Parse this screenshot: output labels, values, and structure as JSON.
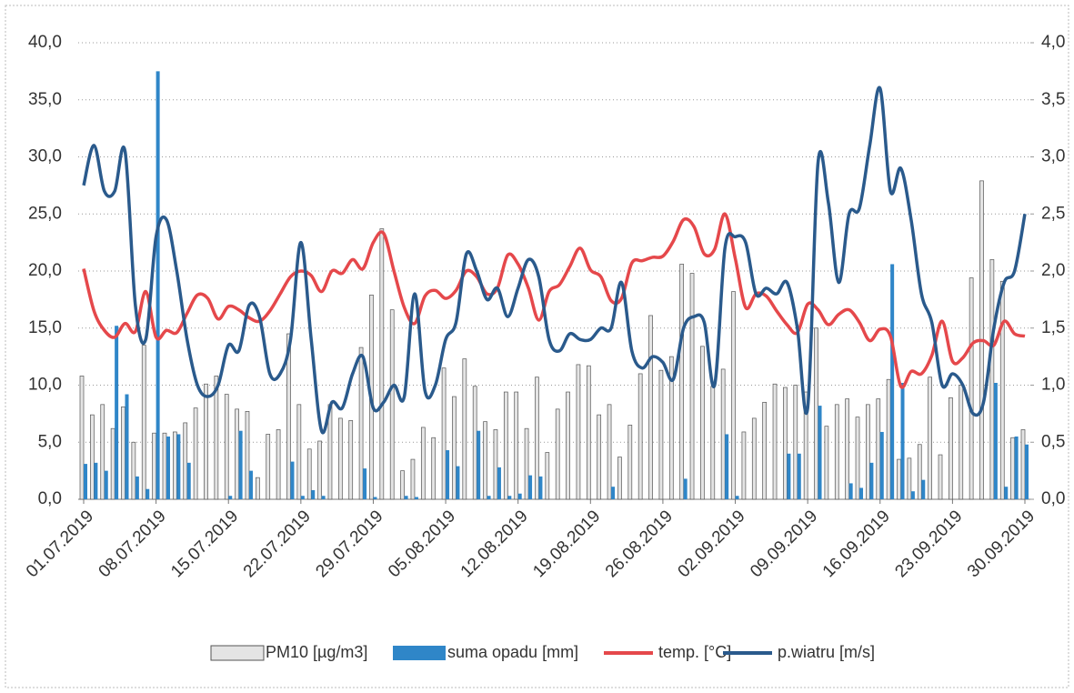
{
  "chart_data": {
    "type": "bar",
    "categories": [
      "01.07.2019",
      null,
      null,
      null,
      null,
      null,
      null,
      "08.07.2019",
      null,
      null,
      null,
      null,
      null,
      null,
      "15.07.2019",
      null,
      null,
      null,
      null,
      null,
      null,
      "22.07.2019",
      null,
      null,
      null,
      null,
      null,
      null,
      "29.07.2019",
      null,
      null,
      null,
      null,
      null,
      null,
      "05.08.2019",
      null,
      null,
      null,
      null,
      null,
      null,
      "12.08.2019",
      null,
      null,
      null,
      null,
      null,
      null,
      "19.08.2019",
      null,
      null,
      null,
      null,
      null,
      null,
      "26.08.2019",
      null,
      null,
      null,
      null,
      null,
      null,
      "02.09.2019",
      null,
      null,
      null,
      null,
      null,
      null,
      "09.09.2019",
      null,
      null,
      null,
      null,
      null,
      null,
      "16.09.2019",
      null,
      null,
      null,
      null,
      null,
      null,
      "23.09.2019",
      null,
      null,
      null,
      null,
      null,
      null,
      "30.09.2019"
    ],
    "series": [
      {
        "name": "PM10  [µg/m3]",
        "type": "bar",
        "color": "#e4e4e4",
        "values": [
          10.8,
          7.4,
          8.3,
          6.2,
          8.1,
          5.0,
          13.5,
          5.8,
          5.8,
          5.9,
          6.7,
          8.0,
          10.1,
          10.8,
          9.2,
          7.9,
          7.7,
          1.9,
          5.7,
          6.1,
          14.5,
          8.3,
          4.4,
          5.1,
          8.3,
          7.1,
          6.9,
          13.3,
          17.9,
          23.7,
          16.6,
          2.5,
          3.5,
          6.3,
          5.4,
          11.5,
          9.0,
          12.3,
          9.9,
          6.8,
          6.1,
          9.4,
          9.4,
          6.2,
          10.7,
          4.1,
          7.9,
          9.4,
          11.8,
          11.7,
          7.4,
          8.3,
          3.7,
          6.5,
          11.0,
          16.1,
          11.3,
          12.5,
          20.6,
          19.8,
          13.4,
          9.9,
          11.4,
          18.2,
          5.9,
          7.1,
          8.5,
          10.1,
          9.8,
          10.0,
          9.4,
          15.0,
          6.4,
          8.3,
          8.8,
          7.2,
          8.3,
          8.8,
          10.5,
          3.5,
          3.6,
          4.8,
          10.7,
          3.9,
          8.9,
          10.0,
          19.4,
          27.9,
          21.0,
          19.1,
          5.4,
          6.1
        ]
      },
      {
        "name": "suma  opadu [mm]",
        "type": "bar",
        "color": "#2f86c8",
        "values": [
          3.1,
          3.2,
          2.5,
          15.2,
          9.2,
          2.0,
          0.9,
          37.5,
          5.5,
          5.7,
          3.2,
          0,
          0,
          0,
          0.3,
          6.0,
          2.5,
          0,
          0,
          0,
          3.3,
          0.3,
          0.8,
          0.3,
          0,
          0,
          0,
          2.7,
          0.2,
          0,
          0,
          0.3,
          0.2,
          0,
          0,
          4.3,
          2.9,
          0,
          6.0,
          0.3,
          2.8,
          0.3,
          0.5,
          2.1,
          2.0,
          0,
          0,
          0,
          0,
          0,
          0,
          1.1,
          0,
          0,
          0,
          0,
          0,
          0,
          1.8,
          0,
          0,
          0,
          5.7,
          0.3,
          0,
          0,
          0,
          0,
          4.0,
          4.0,
          0,
          8.2,
          0,
          0,
          1.4,
          1.0,
          3.2,
          5.9,
          20.6,
          10.2,
          0.7,
          1.7,
          0,
          0,
          0,
          0,
          0,
          0,
          10.2,
          1.1,
          5.5,
          4.8
        ]
      },
      {
        "name": "temp. [°C]",
        "type": "line",
        "color": "#e5484b",
        "values": [
          20.2,
          16.5,
          14.8,
          14.2,
          15.4,
          14.7,
          18.2,
          14.2,
          14.8,
          14.6,
          16.3,
          17.9,
          17.6,
          15.8,
          16.9,
          16.6,
          15.9,
          15.6,
          16.5,
          18.0,
          19.5,
          20.0,
          19.6,
          18.2,
          20.0,
          19.8,
          21.0,
          20.2,
          22.5,
          23.3,
          20.0,
          16.8,
          15.4,
          17.8,
          18.3,
          17.6,
          18.3,
          20.0,
          19.5,
          18.0,
          18.5,
          21.4,
          20.6,
          18.5,
          15.7,
          18.2,
          18.8,
          20.4,
          22.0,
          20.1,
          19.5,
          17.4,
          17.6,
          20.7,
          20.9,
          21.2,
          21.3,
          22.6,
          24.5,
          23.9,
          21.5,
          21.9,
          25.0,
          21.1,
          16.8,
          18.0,
          17.8,
          16.5,
          15.3,
          14.6,
          17.1,
          16.6,
          15.3,
          16.2,
          16.6,
          15.5,
          13.9,
          14.9,
          14.3,
          9.9,
          11.2,
          11.0,
          12.6,
          15.6,
          12.1,
          12.4,
          13.7,
          13.9,
          13.5,
          15.6,
          14.5,
          14.3
        ]
      },
      {
        "name": "p.wiatru [m/s]",
        "type": "line",
        "axis": "y2",
        "color": "#2a5a8c",
        "values": [
          2.75,
          3.1,
          2.7,
          2.7,
          3.05,
          1.7,
          1.4,
          2.3,
          2.45,
          2.0,
          1.4,
          1.0,
          0.9,
          1.0,
          1.35,
          1.3,
          1.7,
          1.6,
          1.1,
          1.1,
          1.4,
          2.25,
          1.4,
          0.6,
          0.85,
          0.8,
          1.1,
          1.25,
          0.8,
          0.85,
          1.0,
          0.9,
          1.8,
          0.95,
          1.0,
          1.4,
          1.55,
          2.15,
          2.0,
          1.75,
          1.85,
          1.6,
          1.85,
          2.1,
          1.95,
          1.4,
          1.3,
          1.45,
          1.4,
          1.4,
          1.5,
          1.5,
          1.9,
          1.3,
          1.15,
          1.25,
          1.2,
          1.05,
          1.5,
          1.6,
          1.55,
          1.0,
          2.2,
          2.3,
          2.25,
          1.8,
          1.85,
          1.8,
          1.9,
          1.5,
          0.8,
          2.95,
          2.6,
          1.9,
          2.5,
          2.55,
          3.1,
          3.6,
          2.7,
          2.9,
          2.45,
          1.8,
          1.55,
          1.0,
          1.1,
          1.0,
          0.75,
          0.85,
          1.5,
          1.9,
          2.0,
          2.5
        ]
      }
    ],
    "ylim": [
      0,
      40
    ],
    "yticks": [
      {
        "value": 0,
        "label": "0,0"
      },
      {
        "value": 5,
        "label": "5,0"
      },
      {
        "value": 10,
        "label": "10,0"
      },
      {
        "value": 15,
        "label": "15,0"
      },
      {
        "value": 20,
        "label": "20,0"
      },
      {
        "value": 25,
        "label": "25,0"
      },
      {
        "value": 30,
        "label": "30,0"
      },
      {
        "value": 35,
        "label": "35,0"
      },
      {
        "value": 40,
        "label": "40,0"
      }
    ],
    "y2lim": [
      0,
      4
    ],
    "y2ticks": [
      {
        "value": 0,
        "label": "0,0"
      },
      {
        "value": 0.5,
        "label": "0,5"
      },
      {
        "value": 1,
        "label": "1,0"
      },
      {
        "value": 1.5,
        "label": "1,5"
      },
      {
        "value": 2,
        "label": "2,0"
      },
      {
        "value": 2.5,
        "label": "2,5"
      },
      {
        "value": 3,
        "label": "3,0"
      },
      {
        "value": 3.5,
        "label": "3,5"
      },
      {
        "value": 4,
        "label": "4,0"
      }
    ],
    "grid": true,
    "legend": "bottom"
  }
}
